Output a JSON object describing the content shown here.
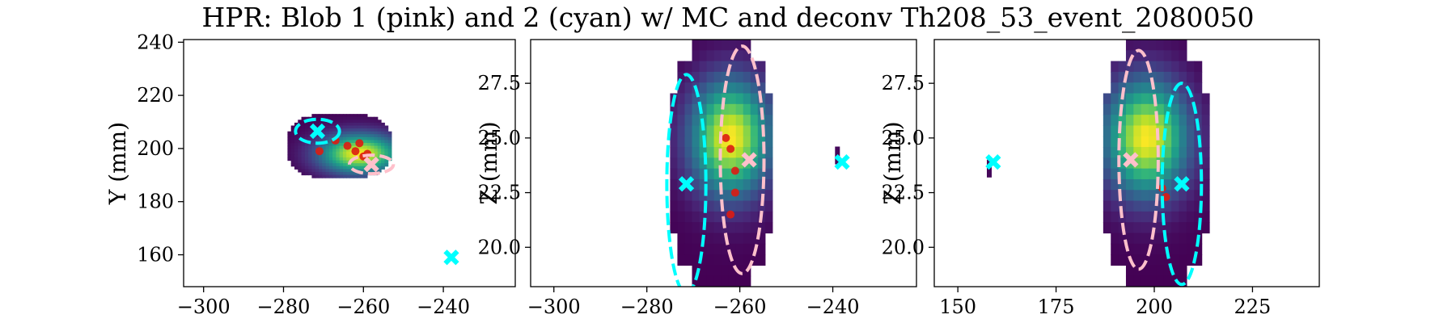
{
  "figure": {
    "title": "HPR: Blob 1 (pink) and 2 (cyan) w/ MC and deconv Th208_53_event_2080050"
  },
  "colors": {
    "blob1": "#ffc0cb",
    "blob2": "#00ffff",
    "mc_hits": "#dd1c12",
    "colormap": "viridis"
  },
  "chart_data": [
    {
      "type": "heatmap",
      "xlabel": "",
      "ylabel": "Y (mm)",
      "xlim": [
        -305,
        -222
      ],
      "ylim": [
        148,
        241
      ],
      "xticks": [
        -300,
        -280,
        -260,
        -240
      ],
      "yticks": [
        160,
        180,
        200,
        220,
        240
      ],
      "xtick_labels": [
        "−300",
        "−280",
        "−260",
        "−240"
      ],
      "ytick_labels": [
        "160",
        "180",
        "200",
        "220",
        "240"
      ],
      "heatmap_region": {
        "x": [
          -279,
          -253
        ],
        "y": [
          189,
          213
        ],
        "peak": [
          -261,
          198
        ]
      },
      "mc_hits": [
        [
          -271,
          199
        ],
        [
          -267,
          203
        ],
        [
          -264,
          201
        ],
        [
          -262,
          199
        ],
        [
          -261,
          202
        ],
        [
          -260,
          197
        ],
        [
          -259,
          198
        ]
      ],
      "blob_markers": [
        {
          "blob": 1,
          "x": -258,
          "y": 194
        },
        {
          "blob": 2,
          "x": -271.5,
          "y": 206.5
        },
        {
          "blob": 2,
          "x": -238,
          "y": 159
        }
      ],
      "ellipses": [
        {
          "blob": 1,
          "cx": -258,
          "cy": 194,
          "rx": 5.5,
          "ry": 3.5
        },
        {
          "blob": 2,
          "cx": -271.5,
          "cy": 206.5,
          "rx": 5.5,
          "ry": 4.5
        }
      ]
    },
    {
      "type": "heatmap",
      "xlabel": "",
      "ylabel": "Z (mm)",
      "xlim": [
        -305,
        -222
      ],
      "ylim": [
        18.2,
        29.5
      ],
      "xticks": [
        -300,
        -280,
        -260,
        -240
      ],
      "yticks": [
        20.0,
        22.5,
        25.0,
        27.5
      ],
      "xtick_labels": [
        "−300",
        "−280",
        "−260",
        "−240"
      ],
      "ytick_labels": [
        "20.0",
        "22.5",
        "25.0",
        "27.5"
      ],
      "heatmap_region": {
        "x": [
          -275,
          -253
        ],
        "y": [
          18.2,
          29.5
        ],
        "peak": [
          -262,
          25.0
        ]
      },
      "isolated_cells": [
        [
          -239,
          24.2
        ]
      ],
      "mc_hits": [
        [
          -263,
          25.0
        ],
        [
          -262,
          24.5
        ],
        [
          -261,
          23.5
        ],
        [
          -261,
          22.5
        ],
        [
          -262,
          21.5
        ]
      ],
      "blob_markers": [
        {
          "blob": 1,
          "x": -258,
          "y": 24.0
        },
        {
          "blob": 2,
          "x": -271.5,
          "y": 22.9
        },
        {
          "blob": 2,
          "x": -238,
          "y": 23.9
        }
      ],
      "ellipses": [
        {
          "blob": 1,
          "cx": -259.5,
          "cy": 24.0,
          "rx": 4.7,
          "ry": 5.2
        },
        {
          "blob": 2,
          "cx": -271.5,
          "cy": 22.9,
          "rx": 4.2,
          "ry": 5.0
        }
      ]
    },
    {
      "type": "heatmap",
      "xlabel": "",
      "ylabel": "Z (mm)",
      "xlim": [
        144,
        242
      ],
      "ylim": [
        18.2,
        29.5
      ],
      "xticks": [
        150,
        175,
        200,
        225
      ],
      "yticks": [
        20.0,
        22.5,
        25.0,
        27.5
      ],
      "xtick_labels": [
        "150",
        "175",
        "200",
        "225"
      ],
      "ytick_labels": [
        "20.0",
        "22.5",
        "25.0",
        "27.5"
      ],
      "heatmap_region": {
        "x": [
          187,
          214
        ],
        "y": [
          18.2,
          29.5
        ],
        "peak": [
          198,
          25.0
        ]
      },
      "isolated_cells": [
        [
          158,
          23.6
        ]
      ],
      "mc_hits": [
        [
          202,
          22.7
        ],
        [
          203,
          22.3
        ]
      ],
      "blob_markers": [
        {
          "blob": 1,
          "x": 194,
          "y": 24.0
        },
        {
          "blob": 2,
          "x": 207,
          "y": 22.9
        },
        {
          "blob": 2,
          "x": 159,
          "y": 23.9
        }
      ],
      "ellipses": [
        {
          "blob": 1,
          "cx": 196,
          "cy": 24.0,
          "rx": 5.0,
          "ry": 5.0
        },
        {
          "blob": 2,
          "cx": 207,
          "cy": 22.9,
          "rx": 5.0,
          "ry": 4.6
        }
      ]
    }
  ]
}
